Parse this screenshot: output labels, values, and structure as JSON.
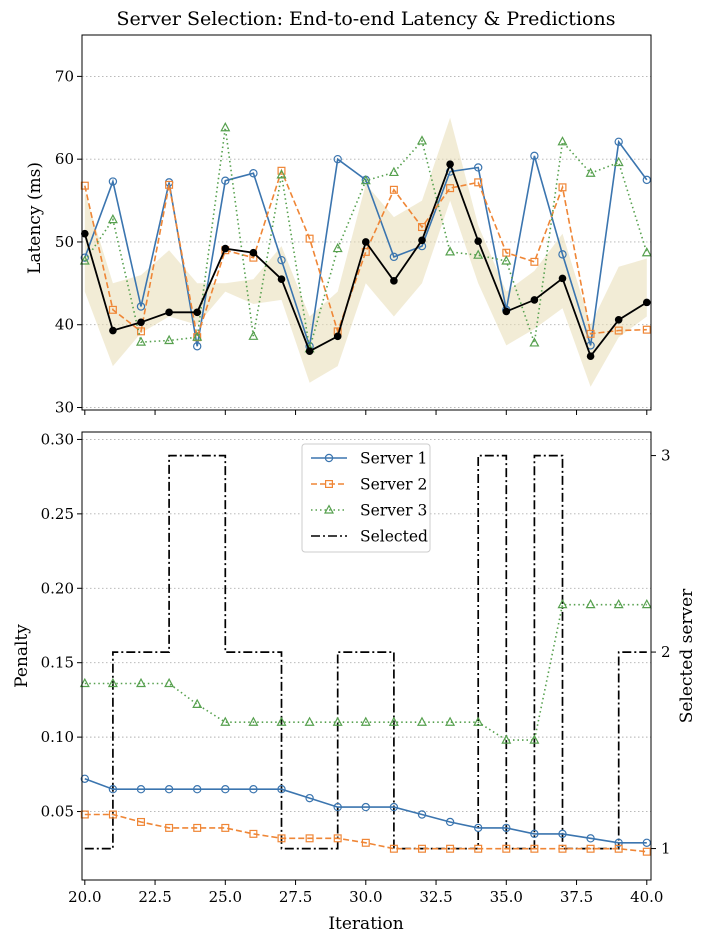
{
  "chart_data": [
    {
      "type": "line",
      "title": "Server Selection: End-to-end Latency & Predictions",
      "xlabel": "",
      "ylabel": "Latency (ms)",
      "xlim": [
        19.9,
        40.15
      ],
      "ylim": [
        29.7,
        75
      ],
      "yticks": [
        30,
        40,
        50,
        60,
        70
      ],
      "ytick_labels": [
        "30",
        "40",
        "50",
        "60",
        "70"
      ],
      "x": [
        20,
        21,
        22,
        23,
        24,
        25,
        26,
        27,
        28,
        29,
        30,
        31,
        32,
        33,
        34,
        35,
        36,
        37,
        38,
        39,
        40
      ],
      "series": [
        {
          "name": "Server 1",
          "color": "#3b75af",
          "values": [
            48.1,
            57.3,
            42.2,
            57.2,
            37.4,
            57.4,
            58.3,
            47.8,
            37.4,
            60.0,
            57.5,
            48.2,
            49.5,
            58.5,
            59.0,
            41.8,
            60.4,
            48.5,
            37.5,
            62.1,
            57.5
          ]
        },
        {
          "name": "Server 2",
          "color": "#ef8636",
          "values": [
            56.8,
            41.8,
            39.2,
            56.9,
            38.5,
            49.0,
            48.1,
            58.6,
            50.4,
            39.2,
            48.8,
            56.3,
            51.8,
            56.5,
            57.2,
            48.7,
            47.6,
            56.6,
            38.9,
            39.3,
            39.4
          ]
        },
        {
          "name": "Server 3",
          "color": "#56a04e",
          "values": [
            47.7,
            52.7,
            37.9,
            38.1,
            38.5,
            63.8,
            38.6,
            58.1,
            37.1,
            49.2,
            57.4,
            58.4,
            62.2,
            48.8,
            48.4,
            47.7,
            37.8,
            62.1,
            58.3,
            59.6,
            48.7
          ]
        },
        {
          "name": "Selected",
          "color": "#000000",
          "values": [
            51.0,
            39.3,
            40.3,
            41.5,
            41.5,
            49.2,
            48.7,
            45.5,
            36.8,
            38.6,
            50.0,
            45.3,
            50.2,
            59.4,
            50.1,
            41.6,
            43.0,
            45.6,
            36.2,
            40.6,
            42.7
          ]
        }
      ],
      "band": {
        "color": "#e8dcb5",
        "upper": [
          56,
          45,
          46,
          49,
          45,
          45,
          45.5,
          49.5,
          41,
          44,
          57,
          53,
          55,
          65,
          52,
          44,
          46.5,
          51,
          40,
          47,
          48
        ],
        "lower": [
          44,
          35,
          39,
          41,
          40,
          44,
          42.5,
          43,
          33,
          35,
          45,
          41,
          45,
          55,
          45,
          37.5,
          39.5,
          42,
          32.5,
          38.5,
          41
        ]
      },
      "grid": "horizontal-dotted"
    },
    {
      "type": "line",
      "title": "",
      "xlabel": "Iteration",
      "ylabel": "Penalty",
      "y2label": "Selected server",
      "xlim": [
        19.9,
        40.15
      ],
      "ylim": [
        0.004,
        0.305
      ],
      "y2lim": [
        0.84,
        3.12
      ],
      "xticks": [
        20,
        22.5,
        25,
        27.5,
        30,
        32.5,
        35,
        37.5,
        40
      ],
      "xtick_labels": [
        "20.0",
        "22.5",
        "25.0",
        "27.5",
        "30.0",
        "32.5",
        "35.0",
        "37.5",
        "40.0"
      ],
      "yticks": [
        0.05,
        0.1,
        0.15,
        0.2,
        0.25,
        0.3
      ],
      "ytick_labels": [
        "0.05",
        "0.10",
        "0.15",
        "0.20",
        "0.25",
        "0.30"
      ],
      "y2ticks": [
        1,
        2,
        3
      ],
      "y2tick_labels": [
        "1",
        "2",
        "3"
      ],
      "x": [
        20,
        21,
        22,
        23,
        24,
        25,
        26,
        27,
        28,
        29,
        30,
        31,
        32,
        33,
        34,
        35,
        36,
        37,
        38,
        39,
        40
      ],
      "series": [
        {
          "name": "Server 1",
          "color": "#3b75af",
          "values": [
            0.072,
            0.065,
            0.065,
            0.065,
            0.065,
            0.065,
            0.065,
            0.065,
            0.059,
            0.053,
            0.053,
            0.053,
            0.048,
            0.043,
            0.039,
            0.039,
            0.035,
            0.035,
            0.032,
            0.029,
            0.029
          ]
        },
        {
          "name": "Server 2",
          "color": "#ef8636",
          "values": [
            0.048,
            0.048,
            0.043,
            0.039,
            0.039,
            0.039,
            0.035,
            0.032,
            0.032,
            0.032,
            0.029,
            0.025,
            0.025,
            0.025,
            0.025,
            0.025,
            0.025,
            0.025,
            0.025,
            0.025,
            0.023
          ]
        },
        {
          "name": "Server 3",
          "color": "#56a04e",
          "values": [
            0.136,
            0.136,
            0.136,
            0.136,
            0.122,
            0.11,
            0.11,
            0.11,
            0.11,
            0.11,
            0.11,
            0.11,
            0.11,
            0.11,
            0.11,
            0.098,
            0.098,
            0.189,
            0.189,
            0.189,
            0.189
          ]
        }
      ],
      "selected_server": {
        "name": "Selected",
        "color": "#000000",
        "steps": [
          1,
          2,
          2,
          3,
          3,
          2,
          2,
          1,
          1,
          2,
          2,
          1,
          1,
          1,
          3,
          1,
          3,
          1,
          1,
          2,
          2
        ]
      },
      "legend": {
        "location": "top-center",
        "entries": [
          "Server 1",
          "Server 2",
          "Server 3",
          "Selected"
        ]
      },
      "grid": "horizontal-dotted"
    }
  ]
}
